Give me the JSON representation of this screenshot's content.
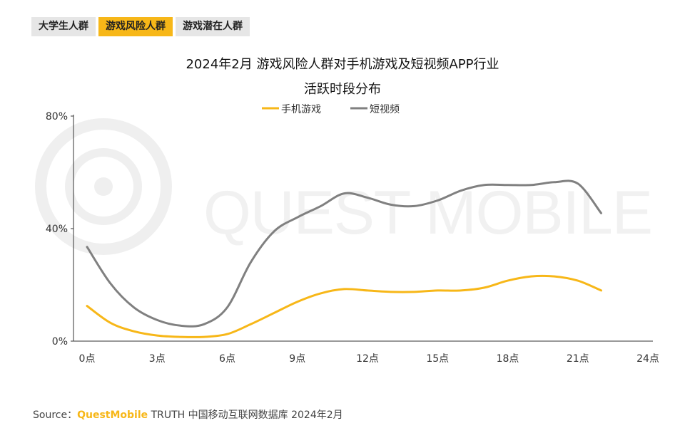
{
  "tabs": [
    {
      "label": "大学生人群",
      "active": false
    },
    {
      "label": "游戏风险人群",
      "active": true
    },
    {
      "label": "游戏潜在人群",
      "active": false
    }
  ],
  "title_line1": "2024年2月 游戏风险人群对手机游戏及短视频APP行业",
  "title_line2": "活跃时段分布",
  "watermark": "QUEST MOBILE",
  "source": {
    "prefix": "Source：",
    "brand": "QuestMobile",
    "rest": " TRUTH 中国移动互联网数据库 2024年2月"
  },
  "colors": {
    "game": "#f7b718",
    "video": "#808080",
    "axis": "#333333",
    "brand": "#f7b718"
  },
  "chart_data": {
    "type": "line",
    "x": [
      0,
      1,
      2,
      3,
      4,
      5,
      6,
      7,
      8,
      9,
      10,
      11,
      12,
      13,
      14,
      15,
      16,
      17,
      18,
      19,
      20,
      21,
      22,
      23
    ],
    "x_ticks": [
      0,
      3,
      6,
      9,
      12,
      15,
      18,
      21,
      24
    ],
    "x_tick_labels": [
      "0点",
      "3点",
      "6点",
      "9点",
      "12点",
      "15点",
      "18点",
      "21点",
      "24点"
    ],
    "y_ticks": [
      0,
      40,
      80
    ],
    "y_tick_labels": [
      "0%",
      "40%",
      "80%"
    ],
    "ylim": [
      0,
      80
    ],
    "xlim": [
      0,
      24
    ],
    "legend_position": "top-center",
    "series": [
      {
        "name": "手机游戏",
        "color": "#f7b718",
        "values": [
          12.5,
          6.5,
          3.5,
          2.0,
          1.5,
          1.5,
          2.5,
          6.0,
          10.0,
          14.0,
          17.0,
          18.5,
          18.0,
          17.5,
          17.5,
          18.0,
          18.0,
          19.0,
          21.5,
          23.0,
          23.0,
          21.5,
          18.0,
          null
        ]
      },
      {
        "name": "短视频",
        "color": "#808080",
        "values": [
          33.5,
          20.5,
          12.0,
          7.5,
          5.5,
          6.0,
          12.0,
          28.0,
          39.0,
          44.0,
          48.0,
          52.5,
          51.0,
          48.5,
          48.0,
          50.0,
          53.5,
          55.5,
          55.5,
          55.5,
          56.5,
          56.0,
          45.5,
          null
        ]
      }
    ]
  }
}
